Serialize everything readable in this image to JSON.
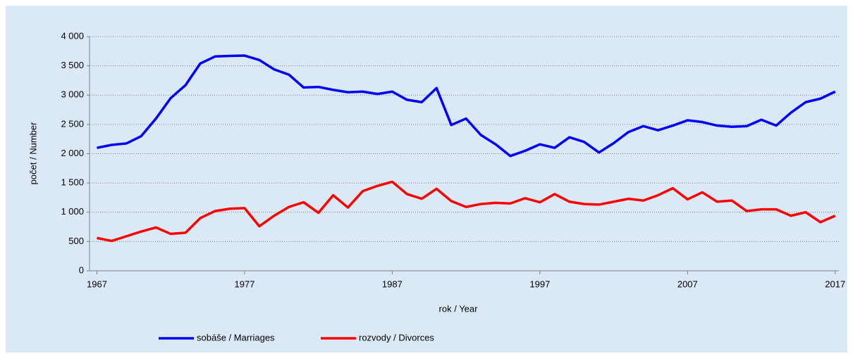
{
  "chart_data": {
    "type": "line",
    "x": [
      1967,
      1968,
      1969,
      1970,
      1971,
      1972,
      1973,
      1974,
      1975,
      1976,
      1977,
      1978,
      1979,
      1980,
      1981,
      1982,
      1983,
      1984,
      1985,
      1986,
      1987,
      1988,
      1989,
      1990,
      1991,
      1992,
      1993,
      1994,
      1995,
      1996,
      1997,
      1998,
      1999,
      2000,
      2001,
      2002,
      2003,
      2004,
      2005,
      2006,
      2007,
      2008,
      2009,
      2010,
      2011,
      2012,
      2013,
      2014,
      2015,
      2016,
      2017
    ],
    "series": [
      {
        "name": "sobáše / Marriages",
        "color": "#0000ff",
        "values": [
          2100,
          2150,
          2175,
          2300,
          2600,
          2950,
          3170,
          3540,
          3660,
          3670,
          3675,
          3600,
          3440,
          3350,
          3130,
          3140,
          3090,
          3050,
          3060,
          3020,
          3060,
          2920,
          2880,
          3120,
          2490,
          2600,
          2320,
          2160,
          1960,
          2050,
          2160,
          2100,
          2280,
          2200,
          2020,
          2180,
          2370,
          2470,
          2400,
          2480,
          2570,
          2540,
          2480,
          2460,
          2470,
          2580,
          2480,
          2700,
          2880,
          2940,
          3060
        ]
      },
      {
        "name": "rozvody / Divorces",
        "color": "#ff0000",
        "values": [
          560,
          510,
          590,
          670,
          740,
          630,
          650,
          900,
          1020,
          1060,
          1070,
          760,
          940,
          1090,
          1170,
          990,
          1290,
          1080,
          1360,
          1450,
          1520,
          1310,
          1230,
          1400,
          1190,
          1090,
          1140,
          1160,
          1150,
          1240,
          1170,
          1310,
          1180,
          1140,
          1130,
          1180,
          1230,
          1200,
          1290,
          1410,
          1220,
          1340,
          1180,
          1200,
          1020,
          1050,
          1050,
          940,
          1000,
          830,
          940
        ]
      }
    ],
    "xlabel": "rok / Year",
    "ylabel": "počet / Number",
    "xlim": [
      1966.5,
      2017.25
    ],
    "xticks": [
      1967,
      1977,
      1987,
      1997,
      2007,
      2017
    ],
    "ylim": [
      0,
      4000
    ],
    "yticks": [
      0,
      500,
      {
        "value": 1000,
        "label": "1 000"
      },
      {
        "value": 1500,
        "label": "1 500"
      },
      {
        "value": 2000,
        "label": "2 000"
      },
      {
        "value": 2500,
        "label": "2 500"
      },
      {
        "value": 3000,
        "label": "3 000"
      },
      {
        "value": 3500,
        "label": "3 500"
      },
      {
        "value": 4000,
        "label": "4 000"
      }
    ],
    "grid": true,
    "legend": "bottom"
  }
}
